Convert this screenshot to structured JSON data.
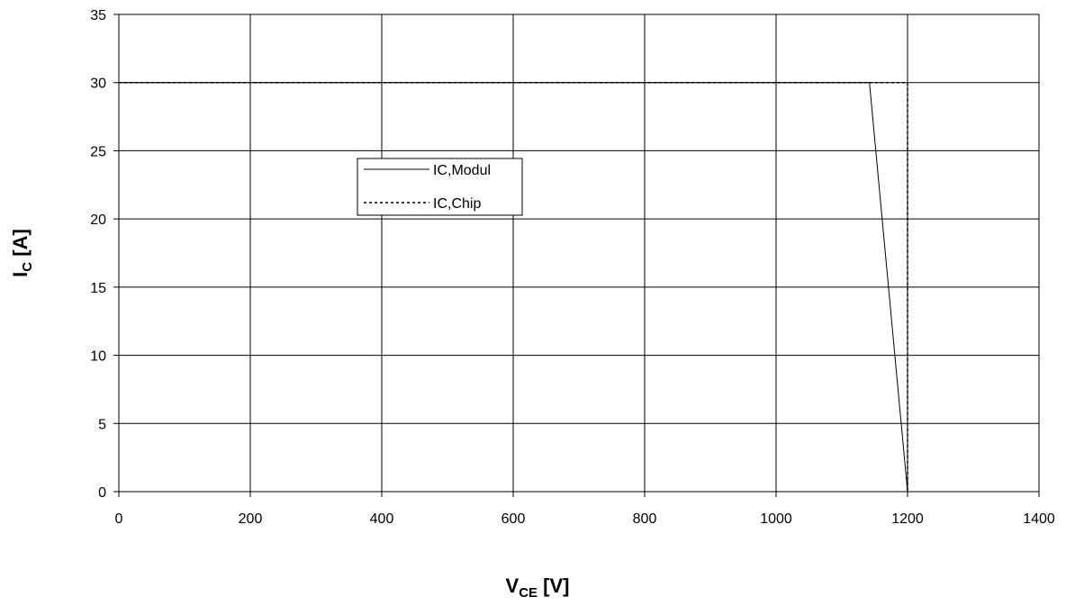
{
  "chart_data": {
    "type": "line",
    "title": "",
    "xlabel": {
      "main": "V",
      "sub": "CE",
      "unit": " [V]"
    },
    "ylabel": {
      "main": "I",
      "sub": "C",
      "unit": " [A]"
    },
    "xlim": [
      0,
      1400
    ],
    "ylim": [
      0,
      35
    ],
    "xticks": [
      0,
      200,
      400,
      600,
      800,
      1000,
      1200,
      1400
    ],
    "yticks": [
      0,
      5,
      10,
      15,
      20,
      25,
      30,
      35
    ],
    "grid": true,
    "legend": {
      "position": "center-left"
    },
    "series": [
      {
        "name": "IC,Modul",
        "style": "solid",
        "color": "#000000",
        "x": [
          0,
          1142,
          1200
        ],
        "y": [
          30,
          30,
          0
        ]
      },
      {
        "name": "IC,Chip",
        "style": "dashed",
        "color": "#000000",
        "x": [
          0,
          1200,
          1200
        ],
        "y": [
          30,
          30,
          0
        ]
      }
    ]
  }
}
